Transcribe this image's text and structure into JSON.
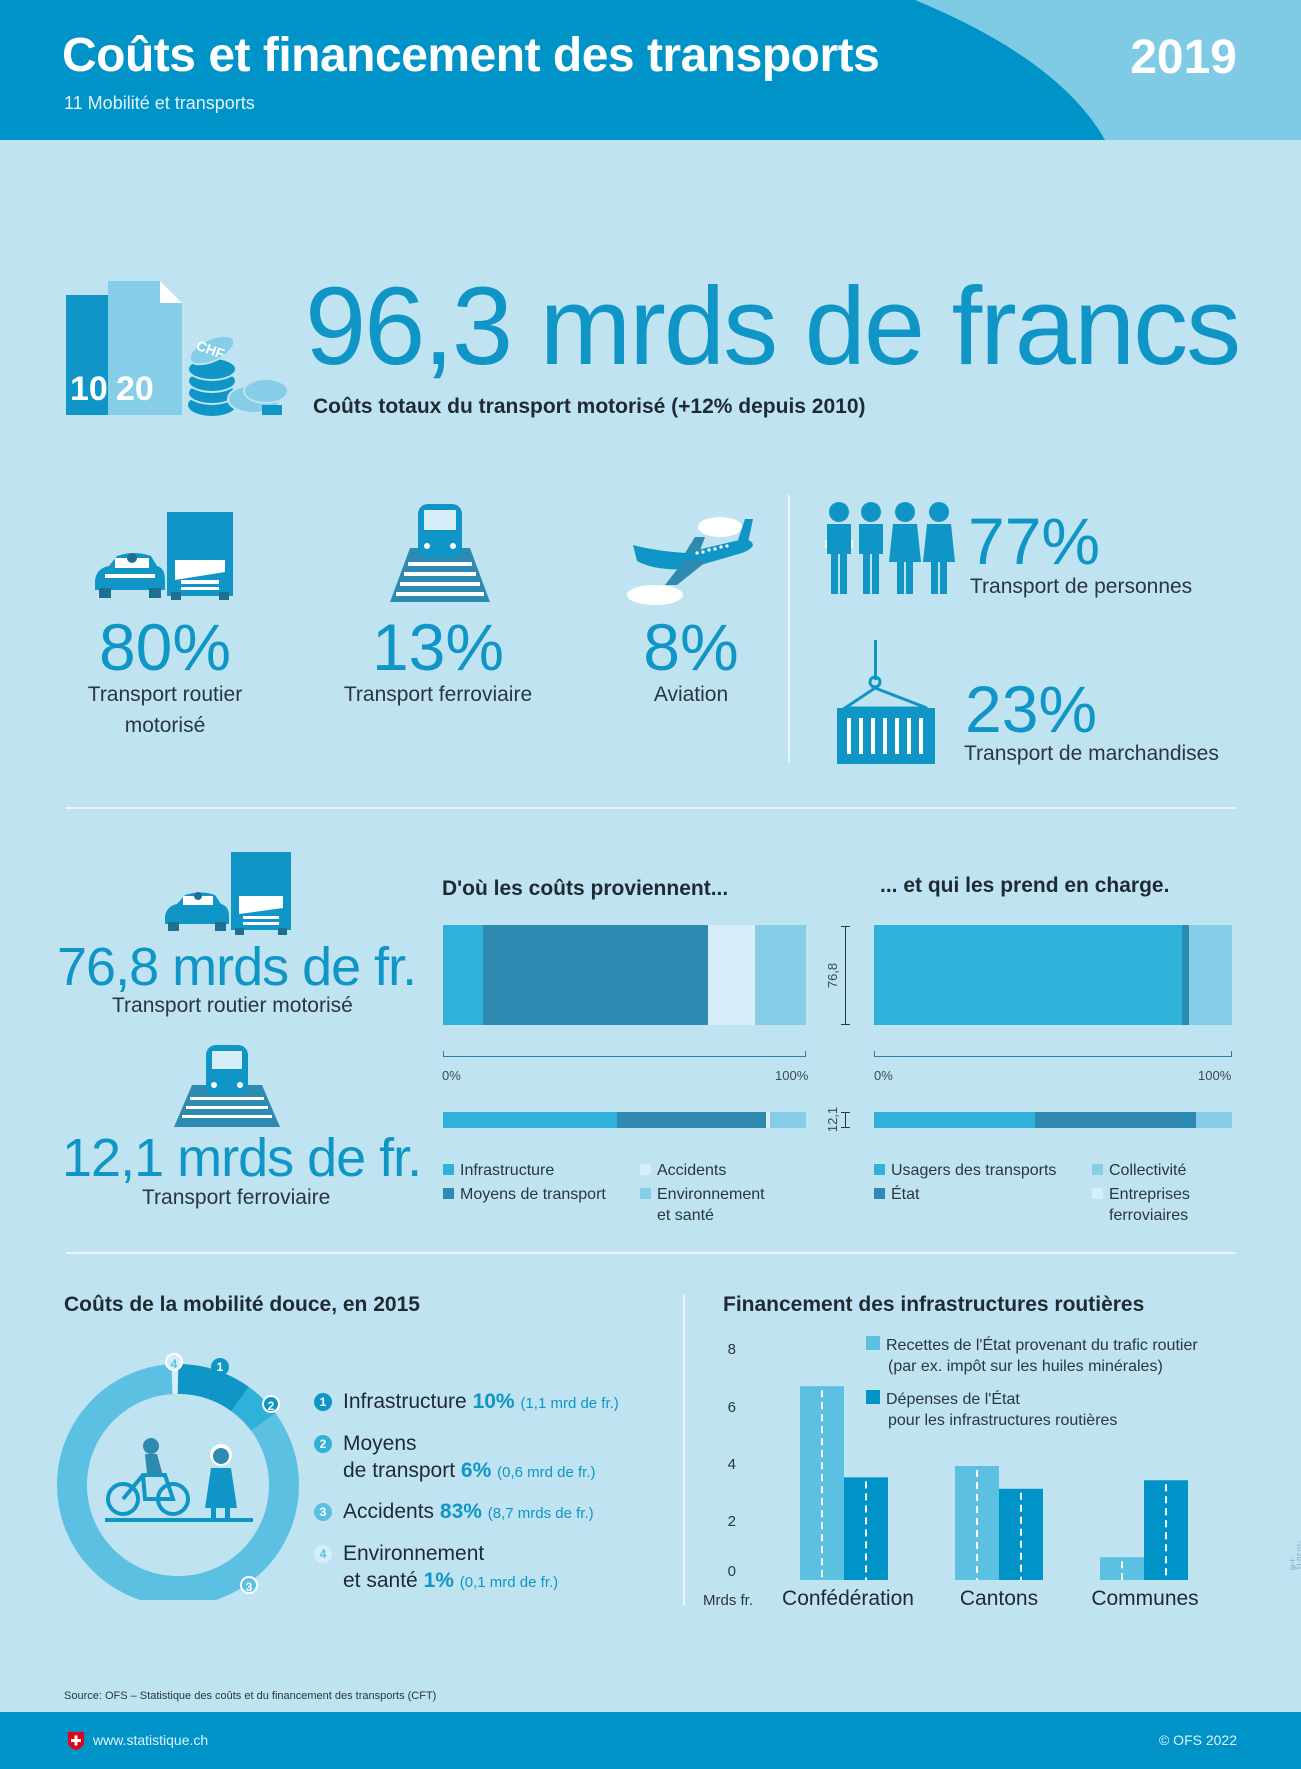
{
  "header": {
    "title": "Coûts et financement des transports",
    "subtitle": "11 Mobilité et transports",
    "year": "2019"
  },
  "total": {
    "value": "96,3 mrds de francs",
    "caption": "Coûts totaux du transport motorisé (+12% depuis 2010)",
    "icon_labels": [
      "10",
      "20",
      "CHF"
    ]
  },
  "shares": {
    "road": {
      "pct": "80%",
      "label_line1": "Transport routier",
      "label_line2": "motorisé"
    },
    "rail": {
      "pct": "13%",
      "label": "Transport ferroviaire"
    },
    "air": {
      "pct": "8%",
      "label": "Aviation"
    },
    "persons": {
      "pct": "77%",
      "label": "Transport de personnes"
    },
    "goods": {
      "pct": "23%",
      "label": "Transport de marchandises"
    }
  },
  "mid": {
    "road": {
      "value": "76,8 mrds de fr.",
      "label": "Transport routier motorisé",
      "axis": "76,8"
    },
    "rail": {
      "value": "12,1 mrds de fr.",
      "label": "Transport ferroviaire",
      "axis": "12,1"
    },
    "origin_title": "D'où les coûts proviennent...",
    "bearer_title": "... et qui les prend en charge.",
    "axis_start": "0%",
    "axis_end": "100%",
    "origin_bars": {
      "road": [
        11,
        62,
        13,
        14
      ],
      "rail": [
        48,
        41,
        1,
        10
      ]
    },
    "bearer_bars": {
      "road": [
        86,
        2,
        12,
        0
      ],
      "rail": [
        45,
        45,
        10,
        0
      ]
    },
    "origin_legend": [
      "Infrastructure",
      "Moyens de transport",
      "Accidents",
      "Environnement",
      "et santé"
    ],
    "bearer_legend": [
      "Usagers des transports",
      "État",
      "Collectivité",
      "Entreprises",
      "ferroviaires"
    ],
    "colors": {
      "c1": "#2fb1da",
      "c2": "#2e8ab0",
      "c3": "#d5eef8",
      "c4": "#86cde8"
    }
  },
  "soft": {
    "title": "Coûts de la mobilité douce, en 2015",
    "items": [
      {
        "num": "1",
        "label": "Infrastructure",
        "pct": "10%",
        "detail": "(1,1 mrd de fr.)"
      },
      {
        "num": "2",
        "label1": "Moyens",
        "label2": "de transport",
        "pct": "6%",
        "detail": "(0,6 mrd de fr.)"
      },
      {
        "num": "3",
        "label": "Accidents",
        "pct": "83%",
        "detail": "(8,7 mrds de fr.)"
      },
      {
        "num": "4",
        "label1": "Environnement",
        "label2": "et santé",
        "pct": "1%",
        "detail": "(0,1 mrd de fr.)"
      }
    ]
  },
  "road_fin": {
    "title": "Financement des infrastructures routières",
    "legend1_line1": "Recettes de l'État provenant du trafic routier",
    "legend1_line2": "(par ex. impôt sur les huiles minérales)",
    "legend2_line1": "Dépenses de l'État",
    "legend2_line2": "pour les infrastructures routières",
    "unit": "Mrds fr."
  },
  "chart_data": {
    "type": "bar",
    "categories": [
      "Confédération",
      "Cantons",
      "Communes"
    ],
    "series": [
      {
        "name": "Recettes de l'État provenant du trafic routier (par ex. impôt sur les huiles minérales)",
        "values": [
          6.8,
          4.0,
          0.8
        ],
        "color": "#5cc0e3"
      },
      {
        "name": "Dépenses de l'État pour les infrastructures routières",
        "values": [
          3.6,
          3.2,
          3.5
        ],
        "color": "#0093c7"
      }
    ],
    "ylabel": "Mrds fr.",
    "ylim": [
      0,
      8
    ],
    "yticks": [
      "0",
      "2",
      "4",
      "6",
      "8"
    ]
  },
  "footer": {
    "source": "Source: OFS – Statistique des coûts et du financement des transports (CFT)",
    "url": "www.statistique.ch",
    "copyright": "© OFS 2022",
    "code": "gr-f-11.02.01-2022a"
  }
}
